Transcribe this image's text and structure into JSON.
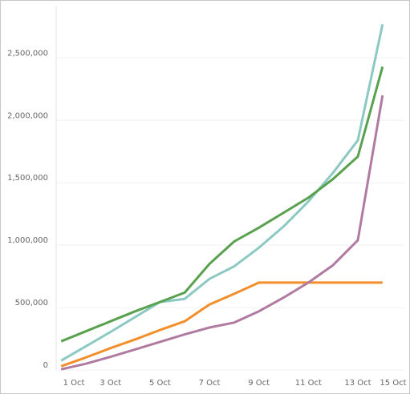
{
  "chart_data": {
    "type": "line",
    "x": [
      1,
      2,
      3,
      4,
      5,
      6,
      7,
      8,
      9,
      10,
      11,
      12,
      13,
      14
    ],
    "xlim": [
      0.8,
      15.5
    ],
    "xticks": [
      {
        "value": 1,
        "label": "1 Oct"
      },
      {
        "value": 3,
        "label": "3 Oct"
      },
      {
        "value": 5,
        "label": "5 Oct"
      },
      {
        "value": 7,
        "label": "7 Oct"
      },
      {
        "value": 9,
        "label": "9 Oct"
      },
      {
        "value": 11,
        "label": "11 Oct"
      },
      {
        "value": 13,
        "label": "13 Oct"
      },
      {
        "value": 15,
        "label": "15 Oct"
      }
    ],
    "ylim": [
      0,
      2900000
    ],
    "yticks": [
      0,
      {
        "value": 500000,
        "label": "500,000"
      },
      {
        "value": 1000000,
        "label": "1,000,000"
      },
      {
        "value": 1500000,
        "label": "1,500,000"
      },
      {
        "value": 2000000,
        "label": "2,000,000"
      },
      {
        "value": 2500000,
        "label": "2,500,000"
      }
    ],
    "grid": true,
    "series": [
      {
        "color": "#8cc9c2",
        "values": [
          75000,
          190000,
          305000,
          425000,
          545000,
          570000,
          730000,
          830000,
          980000,
          1150000,
          1350000,
          1580000,
          1840000,
          2770000
        ]
      },
      {
        "color": "#59a14f",
        "values": [
          230000,
          310000,
          390000,
          470000,
          545000,
          620000,
          850000,
          1030000,
          1140000,
          1260000,
          1380000,
          1530000,
          1710000,
          2430000
        ]
      },
      {
        "color": "#f28e2b",
        "values": [
          30000,
          100000,
          175000,
          245000,
          320000,
          390000,
          525000,
          610000,
          700000,
          700000,
          700000,
          700000,
          700000,
          700000
        ]
      },
      {
        "color": "#b07aa1",
        "values": [
          5000,
          50000,
          105000,
          165000,
          225000,
          285000,
          340000,
          380000,
          470000,
          580000,
          700000,
          840000,
          1040000,
          2200000
        ]
      }
    ]
  }
}
